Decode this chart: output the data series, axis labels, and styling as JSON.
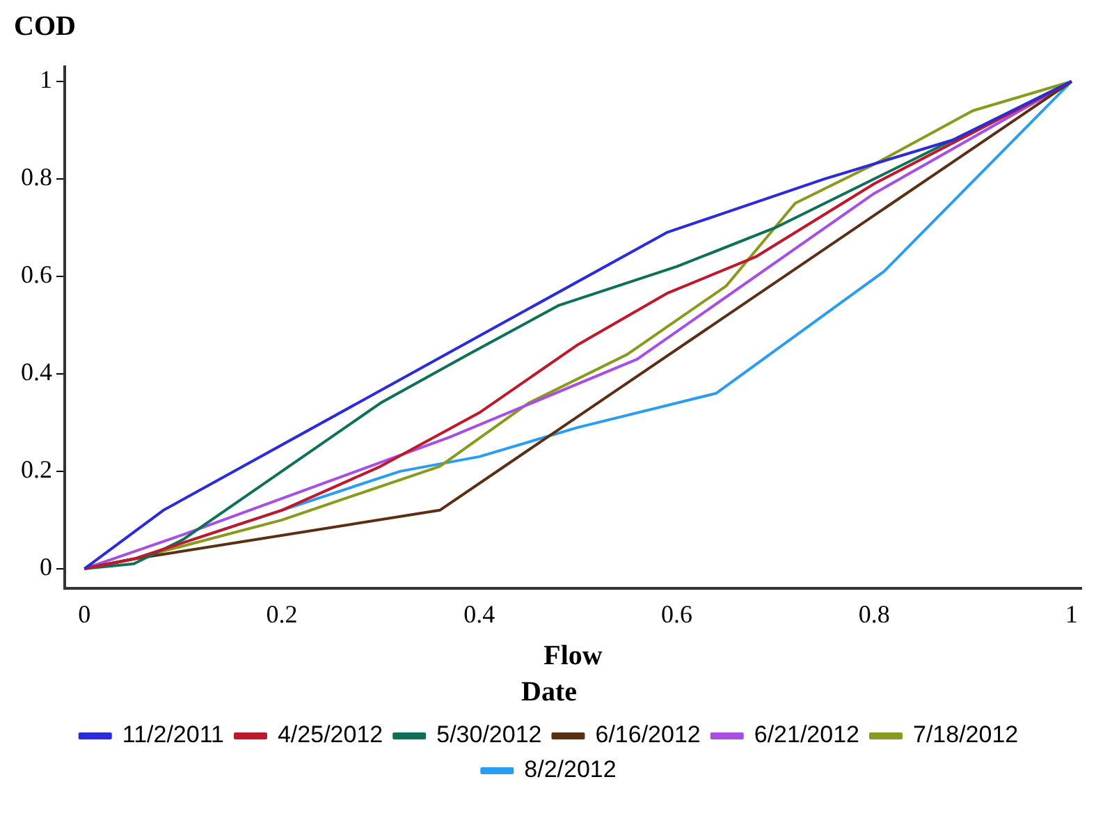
{
  "chart_data": {
    "type": "line",
    "xlabel": "Flow",
    "ylabel": "COD",
    "legend_title": "Date",
    "legend": "bottom",
    "grid": false,
    "marker": "none",
    "line_style": "solid",
    "xlim": [
      -0.02,
      1.01
    ],
    "ylim": [
      -0.04,
      1.03
    ],
    "xticks": [
      0,
      0.2,
      0.4,
      0.6,
      0.8,
      1
    ],
    "yticks": [
      0,
      0.2,
      0.4,
      0.6,
      0.8,
      1
    ],
    "series": [
      {
        "name": "11/2/2011",
        "color": "#2b2bd9",
        "x": [
          0,
          0.08,
          0.59,
          0.75,
          0.88,
          1
        ],
        "values": [
          0,
          0.12,
          0.69,
          0.8,
          0.88,
          1
        ]
      },
      {
        "name": "4/25/2012",
        "color": "#c0182b",
        "x": [
          0,
          0.05,
          0.2,
          0.3,
          0.4,
          0.5,
          0.59,
          0.68,
          0.8,
          1
        ],
        "values": [
          0,
          0.02,
          0.12,
          0.21,
          0.32,
          0.46,
          0.565,
          0.64,
          0.79,
          1
        ]
      },
      {
        "name": "5/30/2012",
        "color": "#0f7058",
        "x": [
          0,
          0.05,
          0.1,
          0.2,
          0.3,
          0.38,
          0.48,
          0.6,
          0.7,
          0.8,
          1
        ],
        "values": [
          0,
          0.01,
          0.06,
          0.2,
          0.34,
          0.43,
          0.54,
          0.62,
          0.7,
          0.8,
          1
        ]
      },
      {
        "name": "6/16/2012",
        "color": "#5a2f14",
        "x": [
          0,
          0.05,
          0.36,
          1
        ],
        "values": [
          0,
          0.02,
          0.12,
          1
        ]
      },
      {
        "name": "6/21/2012",
        "color": "#a64fe0",
        "x": [
          0,
          0.1,
          0.37,
          0.56,
          0.8,
          1
        ],
        "values": [
          0,
          0.07,
          0.27,
          0.43,
          0.77,
          1
        ]
      },
      {
        "name": "7/18/2012",
        "color": "#8a9a1e",
        "x": [
          0,
          0.05,
          0.2,
          0.36,
          0.45,
          0.55,
          0.65,
          0.72,
          0.8,
          0.9,
          1
        ],
        "values": [
          0,
          0.02,
          0.1,
          0.21,
          0.34,
          0.44,
          0.58,
          0.75,
          0.83,
          0.94,
          1
        ]
      },
      {
        "name": "8/2/2012",
        "color": "#2a9df0",
        "x": [
          0,
          0.05,
          0.2,
          0.32,
          0.4,
          0.5,
          0.64,
          0.81,
          1
        ],
        "values": [
          0,
          0.02,
          0.12,
          0.2,
          0.23,
          0.29,
          0.36,
          0.61,
          1
        ]
      }
    ]
  }
}
